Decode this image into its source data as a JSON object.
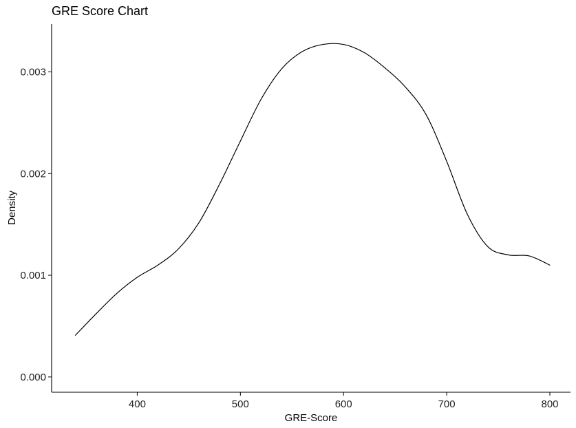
{
  "chart_data": {
    "type": "line",
    "title": "GRE Score Chart",
    "xlabel": "GRE-Score",
    "ylabel": "Density",
    "xlim": [
      317,
      820
    ],
    "ylim": [
      -0.00015,
      0.00347
    ],
    "xticks": [
      400,
      500,
      600,
      700,
      800
    ],
    "yticks": [
      0.0,
      0.001,
      0.002,
      0.003
    ],
    "xtick_labels": [
      "400",
      "500",
      "600",
      "700",
      "800"
    ],
    "ytick_labels": [
      "0.000",
      "0.001",
      "0.002",
      "0.003"
    ],
    "grid": false,
    "legend": false,
    "line_color": "#000000",
    "series": [
      {
        "x": [
          340,
          360,
          380,
          400,
          420,
          440,
          460,
          480,
          500,
          520,
          540,
          560,
          580,
          600,
          620,
          640,
          660,
          680,
          700,
          720,
          740,
          760,
          780,
          800
        ],
        "values": [
          0.00041,
          0.00062,
          0.00082,
          0.00098,
          0.0011,
          0.00126,
          0.00152,
          0.0019,
          0.00232,
          0.00273,
          0.00303,
          0.0032,
          0.00327,
          0.00327,
          0.00319,
          0.00304,
          0.00285,
          0.00258,
          0.00212,
          0.0016,
          0.00128,
          0.0012,
          0.00119,
          0.0011
        ]
      }
    ]
  }
}
